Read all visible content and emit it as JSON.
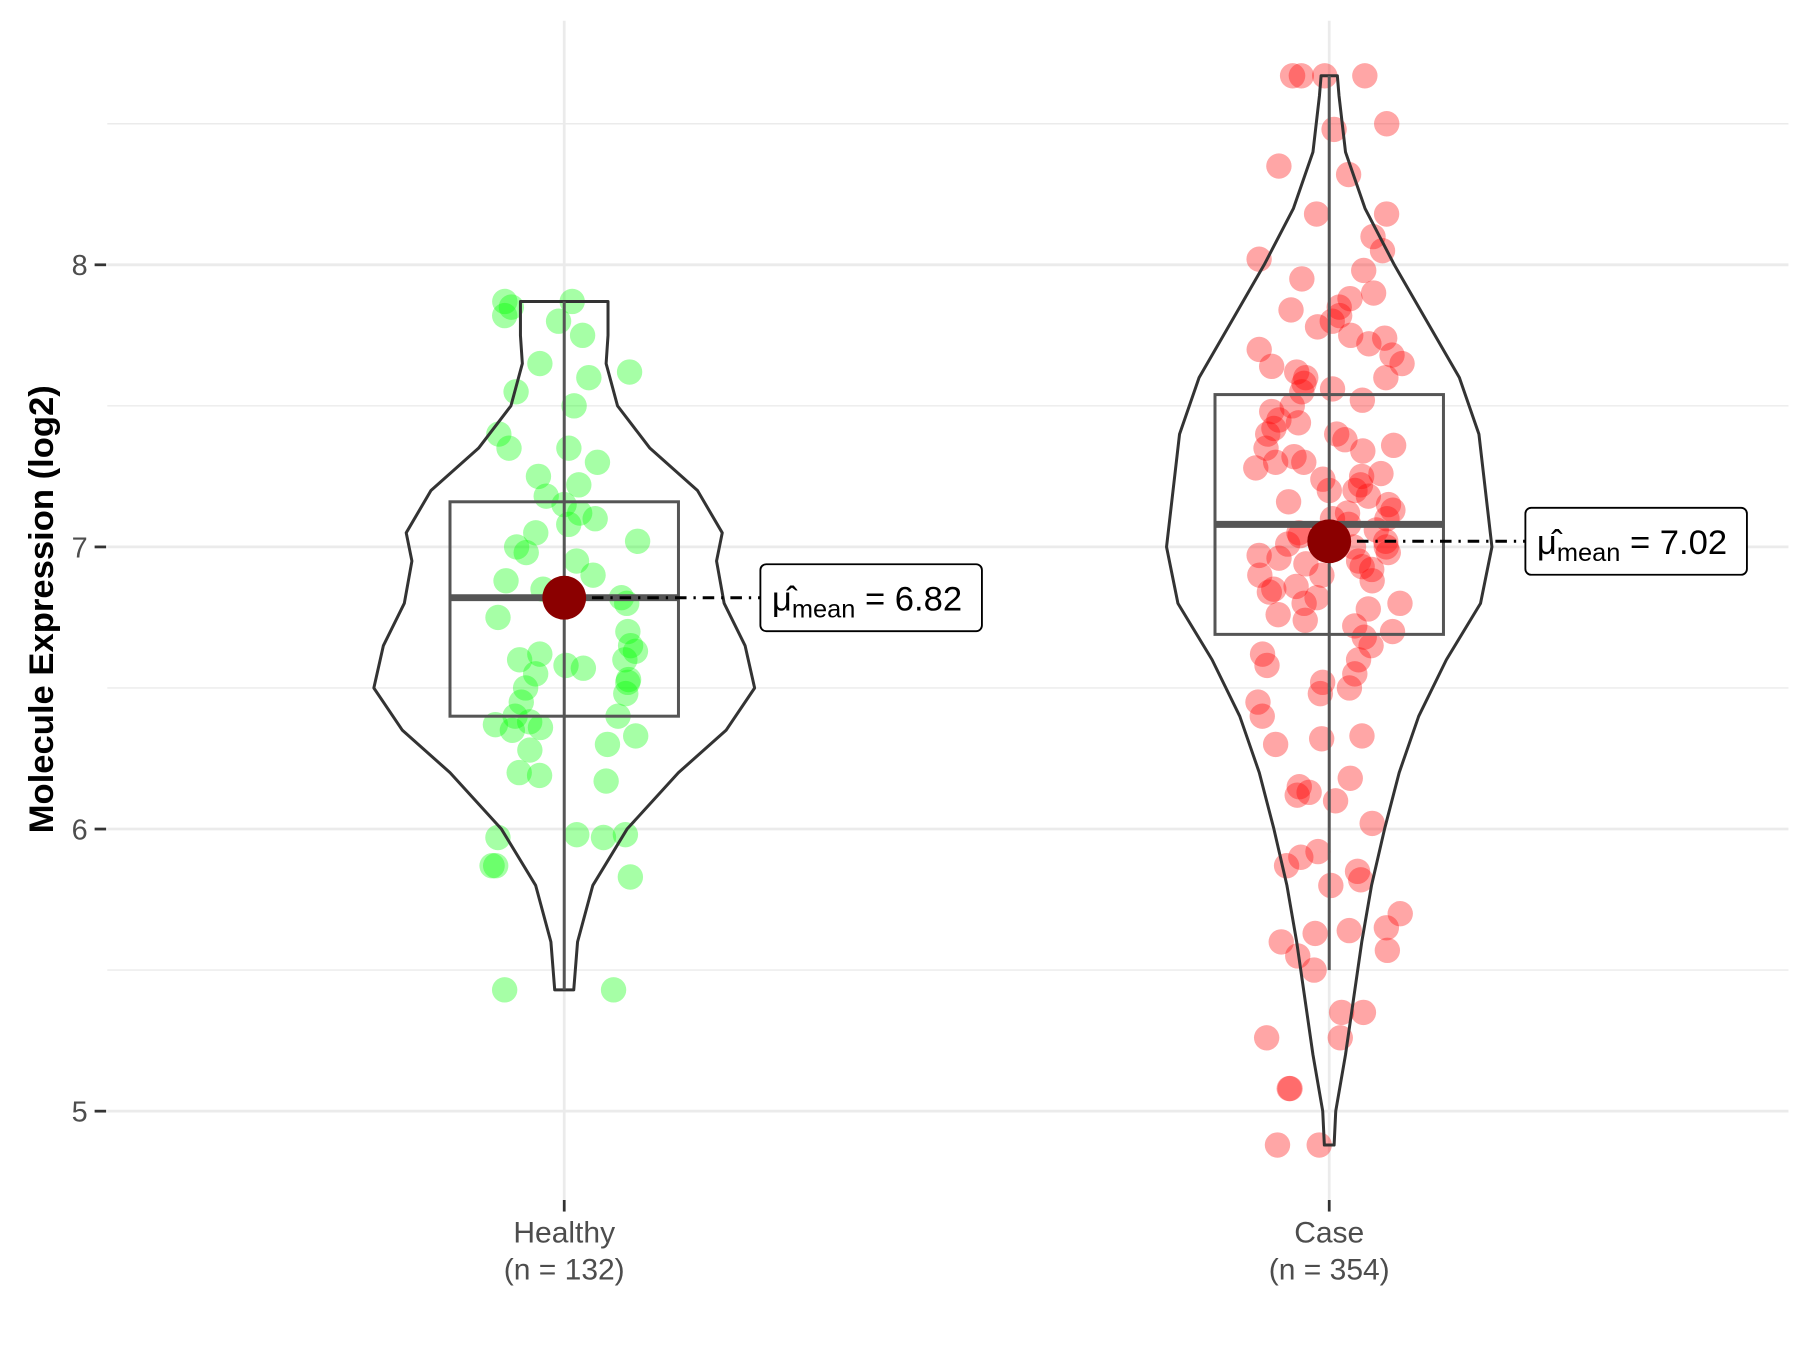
{
  "chart_data": {
    "type": "violin",
    "title": "",
    "xlabel": "",
    "ylabel": "Molecule Expression (log2)",
    "ylim": [
      4.7,
      8.9
    ],
    "yticks": [
      5,
      6,
      7,
      8
    ],
    "grid": true,
    "colors": {
      "Healthy": "#00ff00",
      "Case": "#ff0000",
      "mean_point": "#8b0000",
      "outline": "#333333",
      "box": "#555555"
    },
    "groups": [
      {
        "name": "Healthy",
        "n_label": "(n = 132)",
        "mean": 6.82,
        "mean_label": {
          "prefix": "μ̂",
          "sub": "mean",
          "eq": " = ",
          "value": "6.82"
        },
        "box": {
          "q1": 6.4,
          "median": 6.82,
          "q3": 7.16,
          "whisker_low": 5.43,
          "whisker_high": 7.87
        },
        "violin": [
          [
            5.43,
            0.05
          ],
          [
            5.6,
            0.07
          ],
          [
            5.8,
            0.15
          ],
          [
            6.0,
            0.33
          ],
          [
            6.2,
            0.6
          ],
          [
            6.35,
            0.85
          ],
          [
            6.5,
            1.0
          ],
          [
            6.65,
            0.95
          ],
          [
            6.8,
            0.84
          ],
          [
            6.95,
            0.8
          ],
          [
            7.05,
            0.83
          ],
          [
            7.2,
            0.7
          ],
          [
            7.35,
            0.45
          ],
          [
            7.5,
            0.28
          ],
          [
            7.65,
            0.22
          ],
          [
            7.75,
            0.23
          ],
          [
            7.87,
            0.23
          ]
        ],
        "points": [
          5.43,
          5.43,
          5.83,
          5.87,
          5.87,
          5.97,
          5.97,
          5.98,
          5.98,
          6.17,
          6.19,
          6.2,
          6.28,
          6.3,
          6.33,
          6.35,
          6.36,
          6.37,
          6.38,
          6.4,
          6.4,
          6.45,
          6.48,
          6.5,
          6.52,
          6.53,
          6.55,
          6.57,
          6.58,
          6.6,
          6.6,
          6.62,
          6.63,
          6.65,
          6.7,
          6.75,
          6.8,
          6.82,
          6.85,
          6.88,
          6.9,
          6.95,
          6.98,
          7.0,
          7.02,
          7.05,
          7.08,
          7.1,
          7.12,
          7.15,
          7.18,
          7.22,
          7.25,
          7.3,
          7.35,
          7.35,
          7.4,
          7.5,
          7.55,
          7.6,
          7.62,
          7.65,
          7.75,
          7.8,
          7.82,
          7.85,
          7.87,
          7.87
        ]
      },
      {
        "name": "Case",
        "n_label": "(n = 354)",
        "mean": 7.02,
        "mean_label": {
          "prefix": "μ̂",
          "sub": "mean",
          "eq": " = ",
          "value": "7.02"
        },
        "box": {
          "q1": 6.69,
          "median": 7.08,
          "q3": 7.54,
          "whisker_low": 5.5,
          "whisker_high": 8.67
        },
        "violin": [
          [
            4.88,
            0.03
          ],
          [
            5.0,
            0.04
          ],
          [
            5.2,
            0.1
          ],
          [
            5.4,
            0.15
          ],
          [
            5.6,
            0.2
          ],
          [
            5.8,
            0.26
          ],
          [
            6.0,
            0.34
          ],
          [
            6.2,
            0.43
          ],
          [
            6.4,
            0.55
          ],
          [
            6.6,
            0.72
          ],
          [
            6.8,
            0.93
          ],
          [
            7.0,
            1.0
          ],
          [
            7.2,
            0.96
          ],
          [
            7.4,
            0.92
          ],
          [
            7.6,
            0.8
          ],
          [
            7.8,
            0.6
          ],
          [
            8.0,
            0.4
          ],
          [
            8.2,
            0.22
          ],
          [
            8.4,
            0.1
          ],
          [
            8.6,
            0.06
          ],
          [
            8.67,
            0.05
          ]
        ],
        "points": [
          4.88,
          4.88,
          5.08,
          5.08,
          5.26,
          5.26,
          5.35,
          5.35,
          5.5,
          5.55,
          5.57,
          5.6,
          5.63,
          5.64,
          5.65,
          5.7,
          5.8,
          5.82,
          5.85,
          5.87,
          5.9,
          5.92,
          6.02,
          6.1,
          6.12,
          6.13,
          6.15,
          6.18,
          6.3,
          6.32,
          6.33,
          6.4,
          6.45,
          6.48,
          6.5,
          6.52,
          6.55,
          6.58,
          6.6,
          6.62,
          6.65,
          6.68,
          6.7,
          6.72,
          6.74,
          6.76,
          6.78,
          6.8,
          6.8,
          6.82,
          6.84,
          6.85,
          6.86,
          6.88,
          6.9,
          6.9,
          6.92,
          6.93,
          6.94,
          6.95,
          6.96,
          6.97,
          6.98,
          7.0,
          7.0,
          7.01,
          7.02,
          7.03,
          7.04,
          7.05,
          7.06,
          7.08,
          7.1,
          7.1,
          7.12,
          7.13,
          7.15,
          7.16,
          7.18,
          7.2,
          7.2,
          7.22,
          7.24,
          7.25,
          7.26,
          7.28,
          7.3,
          7.3,
          7.32,
          7.34,
          7.35,
          7.36,
          7.38,
          7.4,
          7.4,
          7.42,
          7.44,
          7.45,
          7.48,
          7.5,
          7.52,
          7.55,
          7.56,
          7.58,
          7.6,
          7.6,
          7.62,
          7.64,
          7.65,
          7.68,
          7.7,
          7.72,
          7.74,
          7.75,
          7.78,
          7.8,
          7.82,
          7.84,
          7.85,
          7.88,
          7.9,
          7.95,
          7.98,
          8.02,
          8.05,
          8.1,
          8.18,
          8.18,
          8.32,
          8.35,
          8.48,
          8.5,
          8.67,
          8.67,
          8.67,
          8.67
        ]
      }
    ]
  }
}
